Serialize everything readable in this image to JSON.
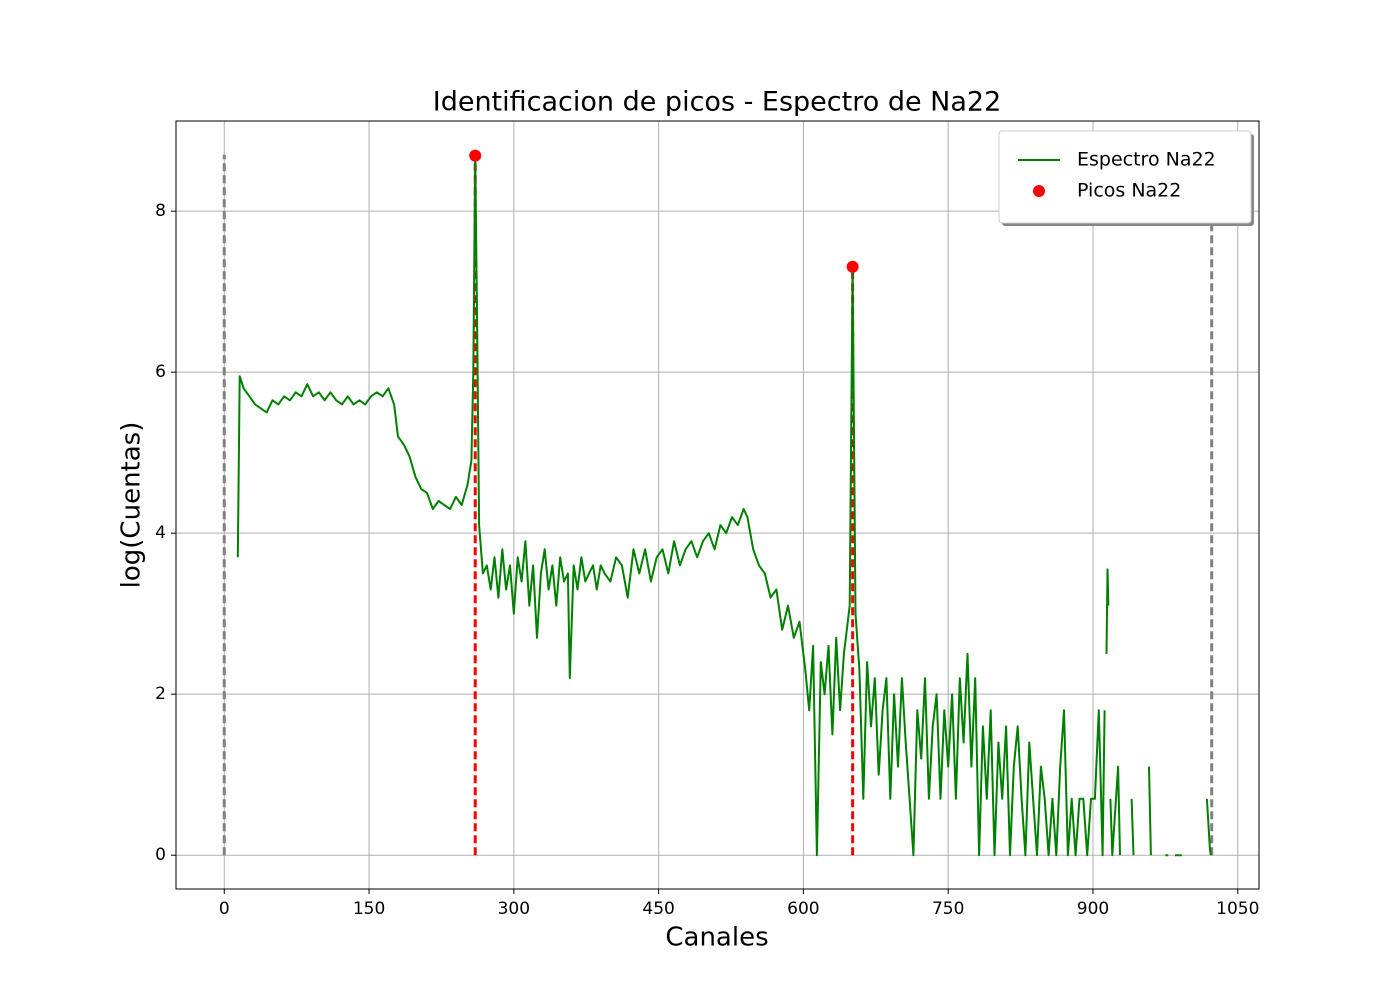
{
  "chart_data": {
    "type": "line",
    "title": "Identificacion de picos - Espectro de Na22",
    "xlabel": "Canales",
    "ylabel": "log(Cuentas)",
    "xlim": [
      -50,
      1072
    ],
    "ylim": [
      -0.42,
      9.12
    ],
    "xticks": [
      0,
      150,
      300,
      450,
      600,
      750,
      900,
      1050
    ],
    "yticks": [
      0,
      2,
      4,
      6,
      8
    ],
    "grid": true,
    "legend": "upper right",
    "series": [
      {
        "name": "Espectro Na22",
        "color": "#008000",
        "style": "line",
        "x": [
          14,
          16,
          20,
          26,
          32,
          38,
          44,
          50,
          56,
          62,
          68,
          74,
          80,
          86,
          92,
          98,
          104,
          110,
          116,
          122,
          128,
          134,
          140,
          146,
          152,
          158,
          164,
          170,
          176,
          180,
          186,
          192,
          198,
          204,
          210,
          216,
          222,
          228,
          234,
          240,
          246,
          252,
          256,
          258,
          260,
          262,
          264,
          268,
          272,
          276,
          280,
          284,
          288,
          292,
          296,
          300,
          304,
          308,
          312,
          316,
          320,
          324,
          328,
          332,
          336,
          340,
          344,
          348,
          352,
          356,
          358,
          362,
          366,
          370,
          374,
          378,
          382,
          386,
          390,
          394,
          400,
          406,
          412,
          418,
          424,
          430,
          436,
          442,
          448,
          454,
          460,
          466,
          472,
          478,
          484,
          490,
          496,
          502,
          508,
          514,
          520,
          526,
          532,
          538,
          542,
          548,
          554,
          560,
          566,
          572,
          578,
          584,
          590,
          596,
          602,
          606,
          610,
          614,
          618,
          622,
          626,
          630,
          634,
          638,
          642,
          646,
          648,
          651,
          654,
          658,
          662,
          666,
          670,
          674,
          678,
          682,
          686,
          690,
          694,
          698,
          702,
          706,
          710,
          714,
          718,
          722,
          726,
          730,
          734,
          738,
          742,
          746,
          750,
          754,
          758,
          762,
          766,
          770,
          774,
          778,
          782,
          786,
          790,
          794,
          798,
          802,
          806,
          810,
          814,
          818,
          822,
          826,
          830,
          834,
          838,
          842,
          846,
          850,
          854,
          858,
          862,
          866,
          870,
          874,
          878,
          882,
          886,
          890,
          894,
          898,
          902,
          906,
          910,
          912,
          913,
          914,
          915,
          916,
          917,
          918,
          920,
          926,
          928,
          929,
          940,
          942,
          943,
          958,
          960,
          961,
          975,
          978,
          979,
          985,
          992,
          993,
          1018,
          1021,
          1022
        ],
        "values": [
          3.7,
          5.95,
          5.8,
          5.7,
          5.6,
          5.55,
          5.5,
          5.65,
          5.6,
          5.7,
          5.65,
          5.75,
          5.7,
          5.85,
          5.7,
          5.75,
          5.65,
          5.75,
          5.65,
          5.6,
          5.7,
          5.6,
          5.65,
          5.6,
          5.7,
          5.75,
          5.7,
          5.8,
          5.6,
          5.2,
          5.1,
          4.95,
          4.7,
          4.55,
          4.5,
          4.3,
          4.4,
          4.35,
          4.3,
          4.45,
          4.35,
          4.6,
          4.9,
          6.0,
          8.69,
          6.5,
          4.1,
          3.5,
          3.6,
          3.3,
          3.7,
          3.2,
          3.8,
          3.3,
          3.6,
          3.0,
          3.7,
          3.4,
          3.9,
          3.1,
          3.6,
          2.7,
          3.5,
          3.8,
          3.3,
          3.6,
          3.1,
          3.7,
          3.4,
          3.5,
          2.2,
          3.6,
          3.3,
          3.7,
          3.4,
          3.5,
          3.6,
          3.3,
          3.6,
          3.5,
          3.4,
          3.7,
          3.6,
          3.2,
          3.8,
          3.5,
          3.8,
          3.4,
          3.7,
          3.8,
          3.5,
          3.9,
          3.6,
          3.8,
          3.9,
          3.7,
          3.9,
          4.0,
          3.8,
          4.1,
          4.0,
          4.2,
          4.1,
          4.3,
          4.2,
          3.8,
          3.6,
          3.5,
          3.2,
          3.3,
          2.8,
          3.1,
          2.7,
          2.9,
          2.3,
          1.8,
          2.6,
          0,
          2.4,
          2.0,
          2.6,
          1.5,
          2.7,
          1.8,
          2.5,
          2.9,
          3.1,
          7.31,
          3.0,
          2.3,
          0.7,
          2.4,
          1.6,
          2.2,
          1.0,
          1.8,
          2.2,
          0.7,
          2.0,
          1.1,
          2.2,
          1.4,
          0.7,
          0,
          1.8,
          1.2,
          2.2,
          0.7,
          1.6,
          2.0,
          0.7,
          1.8,
          1.1,
          2.0,
          0.7,
          2.2,
          1.4,
          2.5,
          1.1,
          2.2,
          0,
          1.6,
          0.7,
          1.8,
          0,
          1.4,
          0.7,
          1.6,
          0,
          1.1,
          1.6,
          0.7,
          0,
          1.4,
          0.7,
          0,
          1.1,
          0.7,
          0,
          0.7,
          0,
          1.1,
          1.8,
          0,
          0.7,
          0,
          0.7,
          0.7,
          0,
          0.7,
          0.7,
          1.8,
          0,
          1.8,
          null,
          2.5,
          3.55,
          3.1,
          null,
          0.7,
          0,
          1.1,
          0,
          null,
          0.7,
          0,
          null,
          1.1,
          0,
          null,
          0,
          0,
          null,
          0,
          0,
          null,
          0.7,
          0.1,
          0
        ]
      },
      {
        "name": "Picos Na22",
        "color": "#ff0000",
        "style": "marker",
        "x": [
          260,
          651
        ],
        "values": [
          8.69,
          7.31
        ]
      }
    ],
    "vlines": [
      {
        "x": 0,
        "ymin": 0,
        "ymax": 8.7,
        "color": "#808080"
      },
      {
        "x": 1023,
        "ymin": 0,
        "ymax": 8.7,
        "color": "#808080"
      },
      {
        "x": 260,
        "ymin": 0,
        "ymax": 8.69,
        "color": "#ff0000"
      },
      {
        "x": 651,
        "ymin": 0,
        "ymax": 7.31,
        "color": "#ff0000"
      }
    ]
  }
}
